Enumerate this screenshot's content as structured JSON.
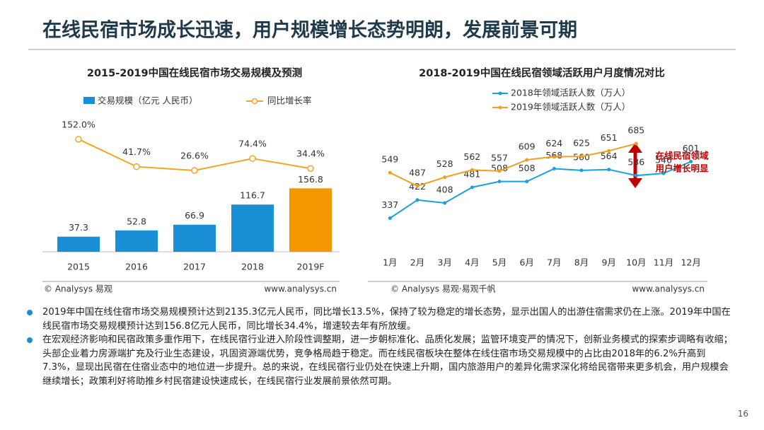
{
  "title": "在线民宿市场成长迅速，用户规模增长态势明朗，发展前景可期",
  "chart_data": [
    {
      "type": "combo",
      "title": "2015-2019中国在线民宿市场交易规模及预测",
      "categories": [
        "2015",
        "2016",
        "2017",
        "2018",
        "2019F"
      ],
      "series": [
        {
          "name": "交易规模（亿元 人民币）",
          "type": "bar",
          "color": "#1a8fd6",
          "colors": [
            "#1a8fd6",
            "#1a8fd6",
            "#1a8fd6",
            "#1a8fd6",
            "#f39800"
          ],
          "values": [
            37.3,
            52.8,
            66.9,
            116.7,
            156.8
          ]
        },
        {
          "name": "同比增长率",
          "type": "line",
          "axis": "y2",
          "color": "#f5a623",
          "values": [
            152.0,
            41.7,
            26.6,
            74.4,
            34.4
          ],
          "value_labels": [
            "152.0%",
            "41.7%",
            "26.6%",
            "74.4%",
            "34.4%"
          ]
        }
      ],
      "ylim": [
        0,
        360
      ],
      "y2lim": [
        -300,
        285
      ],
      "legend": "top",
      "source": "© Analysys 易观",
      "website": "www.analysys.cn"
    },
    {
      "type": "line",
      "title": "2018-2019中国在线民宿领域活跃用户月度情况对比",
      "categories": [
        "1月",
        "2月",
        "3月",
        "4月",
        "5月",
        "6月",
        "7月",
        "8月",
        "9月",
        "10月",
        "11月",
        "12月"
      ],
      "series": [
        {
          "name": "2018年领域活跃人数（万人）",
          "color": "#1aa0dc",
          "values": [
            337,
            422,
            408,
            481,
            508,
            508,
            568,
            560,
            564,
            536,
            546,
            601
          ]
        },
        {
          "name": "2019年领域活跃人数（万人）",
          "color": "#f0a020",
          "values": [
            549,
            487,
            528,
            562,
            557,
            609,
            624,
            625,
            651,
            685,
            null,
            null
          ]
        }
      ],
      "ylim": [
        200,
        860
      ],
      "legend": "top",
      "annotation": [
        "在线民宿领域",
        "用户增长明显"
      ],
      "source": "© Analysys 易观·易观千帆",
      "website": "www.analysys.cn"
    }
  ],
  "bullets": [
    "2019年中国在线住宿市场交易规模预计达到2135.3亿元人民币，同比增长13.5%，保持了较为稳定的增长态势，显示出国人的出游住宿需求仍在上涨。2019年中国在线民宿市场交易规模预计达到156.8亿元人民币，同比增长34.4%，增速较去年有所放缓。",
    "在宏观经济影响和民宿政策多重作用下，在线民宿行业进入阶段性调整期，进一步朝标准化、品质化发展；监管环境变严的情况下，创新业务模式的探索步调略有收缩；头部企业着力房源端扩充及行业生态建设，巩固资源端优势，竞争格局趋于稳定。而在线民宿板块在整体在线住宿市场交易规模中的占比由2018年的6.2%升高到7.3%，显现出民宿在住宿业态中的地位进一步提升。总的来说，在线民宿行业仍处在快速上升期，国内旅游用户的差异化需求深化将给民宿带来更多机会，用户规模会继续增长；政策利好将助推乡村民宿建设快速成长，在线民宿行业发展前景依然可期。"
  ],
  "page_number": "16"
}
